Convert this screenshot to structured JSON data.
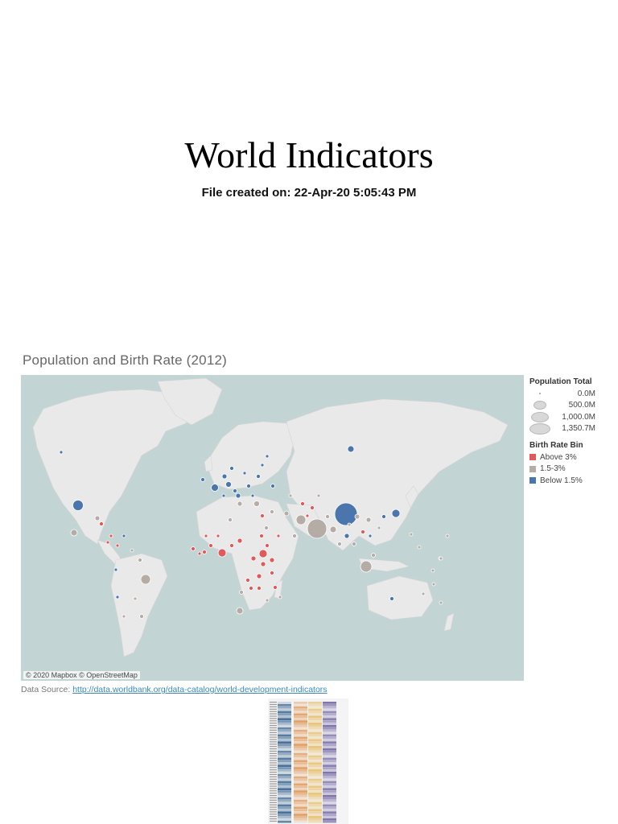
{
  "page": {
    "title": "World Indicators",
    "subtitle": "File created on: 22-Apr-20 5:05:43 PM"
  },
  "map": {
    "title": "Population and Birth Rate (2012)",
    "attribution": "© 2020 Mapbox © OpenStreetMap",
    "colors": {
      "ocean": "#c3d4d4",
      "land": "#e9e9e9",
      "above": "#e05a5a",
      "mid": "#b6aca6",
      "below": "#4a76ad"
    },
    "legend": {
      "size_title": "Population Total",
      "size_items": [
        "0.0M",
        "500.0M",
        "1,000.0M",
        "1,350.7M"
      ],
      "color_title": "Birth Rate Bin",
      "color_items": [
        {
          "label": "Above 3%",
          "color": "#e05a5a"
        },
        {
          "label": "1.5-3%",
          "color": "#b6aca6"
        },
        {
          "label": "Below 1.5%",
          "color": "#4a76ad"
        }
      ]
    }
  },
  "source": {
    "prefix": "Data Source: ",
    "link": "http://data.worldbank.org/data-catalog/world-development-indicators"
  },
  "thumbnail": {
    "colors": [
      "#3e6a96",
      "#e09a5a",
      "#e8c070",
      "#7b6ea8"
    ]
  }
}
